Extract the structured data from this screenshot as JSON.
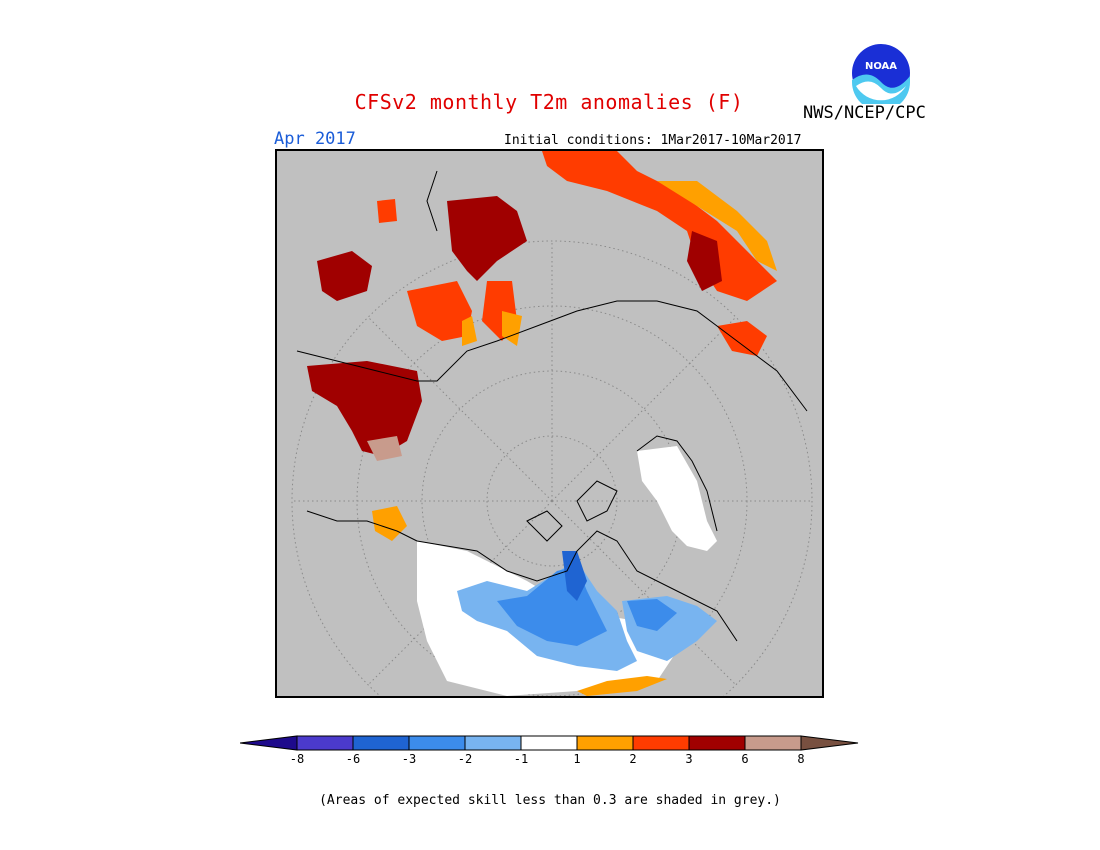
{
  "header": {
    "title": "CFSv2 monthly T2m anomalies (F)",
    "month": "Apr 2017",
    "initial_conditions": "Initial conditions: 1Mar2017-10Mar2017",
    "agency": "NWS/NCEP/CPC",
    "logo_text": "NOAA"
  },
  "colorbar": {
    "bins": [
      {
        "color": "#1e0a8c"
      },
      {
        "color": "#4b3acc"
      },
      {
        "color": "#1f64d2"
      },
      {
        "color": "#3c8ceb"
      },
      {
        "color": "#78b4f0"
      },
      {
        "color": "#ffffff"
      },
      {
        "color": "#ffa000"
      },
      {
        "color": "#ff3c00"
      },
      {
        "color": "#a00000"
      },
      {
        "color": "#c89b8c"
      },
      {
        "color": "#785040"
      }
    ],
    "labels": [
      "-8",
      "-6",
      "-3",
      "-2",
      "-1",
      "1",
      "2",
      "3",
      "6",
      "8"
    ]
  },
  "footnote": "(Areas of expected skill less than 0.3 are shaded in grey.)",
  "map": {
    "projection": "polar stereographic",
    "no_skill_color": "#c0c0c0"
  }
}
